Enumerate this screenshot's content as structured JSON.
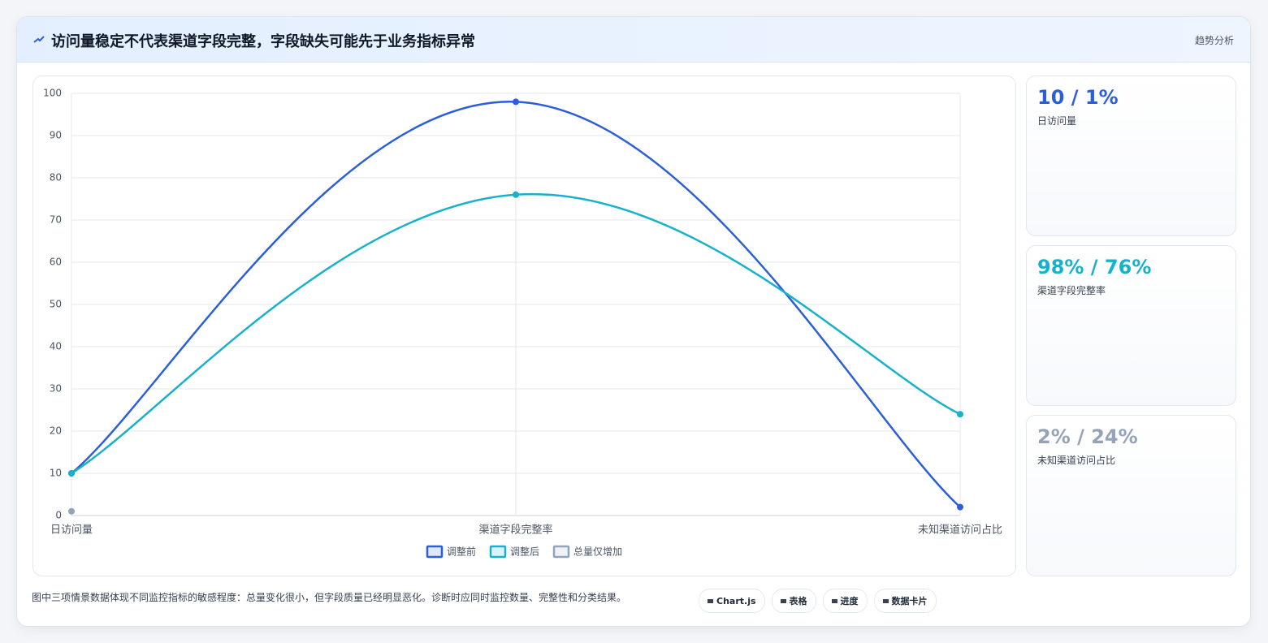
{
  "header": {
    "title": "访问量稳定不代表渠道字段完整，字段缺失可能先于业务指标异常",
    "tag": "趋势分析"
  },
  "chart_data": {
    "type": "line",
    "categories": [
      "日访问量",
      "渠道字段完整率",
      "未知渠道访问占比"
    ],
    "series": [
      {
        "name": "调整前",
        "color": "#2b5fd9",
        "values": [
          10,
          98,
          2
        ]
      },
      {
        "name": "调整后",
        "color": "#17b2c9",
        "values": [
          10,
          76,
          24
        ]
      },
      {
        "name": "总量仅增加",
        "color": "#94a3b8",
        "values": [
          1,
          null,
          null
        ]
      }
    ],
    "ylim": [
      0,
      100
    ],
    "yticks": [
      0,
      10,
      20,
      30,
      40,
      50,
      60,
      70,
      80,
      90,
      100
    ],
    "grid": true,
    "legend": "bottom"
  },
  "cards": [
    {
      "value": "10 / 1%",
      "label": "日访问量",
      "color": "#2b5fd9"
    },
    {
      "value": "98% / 76%",
      "label": "渠道字段完整率",
      "color": "#17b2c9"
    },
    {
      "value": "2% / 24%",
      "label": "未知渠道访问占比",
      "color": "#94a3b8"
    }
  ],
  "footer": {
    "note": "图中三项情景数据体现不同监控指标的敏感程度：总量变化很小，但字段质量已经明显恶化。诊断时应同时监控数量、完整性和分类结果。",
    "buttons": [
      "Chart.js",
      "表格",
      "进度",
      "数据卡片"
    ]
  }
}
